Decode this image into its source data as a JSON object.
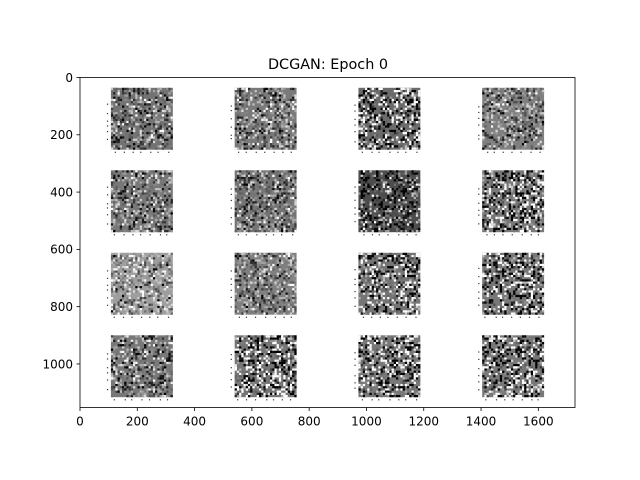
{
  "chart_data": {
    "type": "heatmap",
    "title": "DCGAN: Epoch 0",
    "xlabel": "",
    "ylabel": "",
    "xlim": [
      0,
      1728
    ],
    "ylim": [
      1152,
      0
    ],
    "y_inverted": true,
    "xticks": [
      0,
      200,
      400,
      600,
      800,
      1000,
      1200,
      1400,
      1600
    ],
    "yticks": [
      0,
      200,
      400,
      600,
      800,
      1000
    ],
    "grid": false,
    "legend": "none",
    "image_grid": {
      "rows": 4,
      "cols": 4,
      "cell_x_starts": [
        108,
        540,
        972,
        1404
      ],
      "cell_y_starts": [
        36,
        324,
        612,
        900
      ],
      "cell_width": 216,
      "cell_height": 216,
      "pixels_per_side": 28,
      "cells": [
        {
          "row": 0,
          "col": 0,
          "mean": 0.45,
          "contrast": 0.28
        },
        {
          "row": 0,
          "col": 1,
          "mean": 0.48,
          "contrast": 0.26
        },
        {
          "row": 0,
          "col": 2,
          "mean": 0.42,
          "contrast": 0.55
        },
        {
          "row": 0,
          "col": 3,
          "mean": 0.5,
          "contrast": 0.25
        },
        {
          "row": 1,
          "col": 0,
          "mean": 0.47,
          "contrast": 0.28
        },
        {
          "row": 1,
          "col": 1,
          "mean": 0.46,
          "contrast": 0.26
        },
        {
          "row": 1,
          "col": 2,
          "mean": 0.3,
          "contrast": 0.35
        },
        {
          "row": 1,
          "col": 3,
          "mean": 0.47,
          "contrast": 0.55
        },
        {
          "row": 2,
          "col": 0,
          "mean": 0.62,
          "contrast": 0.24
        },
        {
          "row": 2,
          "col": 1,
          "mean": 0.5,
          "contrast": 0.25
        },
        {
          "row": 2,
          "col": 2,
          "mean": 0.46,
          "contrast": 0.5
        },
        {
          "row": 2,
          "col": 3,
          "mean": 0.47,
          "contrast": 0.55
        },
        {
          "row": 3,
          "col": 0,
          "mean": 0.47,
          "contrast": 0.3
        },
        {
          "row": 3,
          "col": 1,
          "mean": 0.46,
          "contrast": 0.58
        },
        {
          "row": 3,
          "col": 2,
          "mean": 0.47,
          "contrast": 0.55
        },
        {
          "row": 3,
          "col": 3,
          "mean": 0.47,
          "contrast": 0.55
        }
      ]
    }
  }
}
